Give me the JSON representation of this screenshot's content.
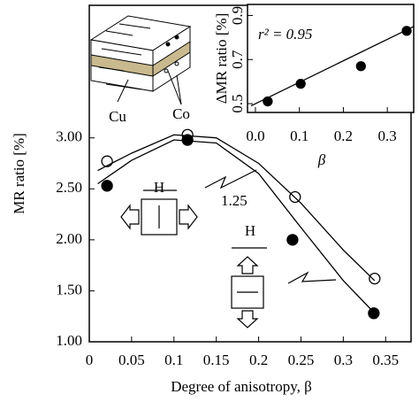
{
  "chart_data": [
    {
      "type": "scatter",
      "xlabel": "Degree of anisotropy, β",
      "ylabel": "MR ratio [%]",
      "xlim": [
        0,
        0.38
      ],
      "ylim": [
        1.0,
        4.3
      ],
      "xticks": [
        0,
        0.05,
        0.1,
        0.15,
        0.2,
        0.25,
        0.3,
        0.35
      ],
      "yticks": [
        {
          "value": 1,
          "label": "1.00"
        },
        {
          "value": 1.5,
          "label": "1.50"
        },
        {
          "value": 2,
          "label": "2.00"
        },
        {
          "value": 2.5,
          "label": "2.50"
        },
        {
          "value": 3,
          "label": "3.00"
        }
      ],
      "series": [
        {
          "marker": "open",
          "color": "#000000",
          "x": [
            0.021,
            0.116,
            0.243,
            0.337
          ],
          "values": [
            2.77,
            3.03,
            2.42,
            1.62
          ]
        },
        {
          "marker": "filled",
          "color": "#000000",
          "x": [
            0.021,
            0.116,
            0.24,
            0.336
          ],
          "values": [
            2.53,
            2.98,
            2.0,
            1.28
          ]
        },
        {
          "marker": "none",
          "color": "#000000",
          "x": [
            0.01,
            0.05,
            0.1,
            0.15,
            0.2,
            0.25,
            0.3,
            0.337
          ],
          "values": [
            2.68,
            2.85,
            3.03,
            3.0,
            2.75,
            2.36,
            1.9,
            1.6
          ]
        },
        {
          "marker": "none",
          "color": "#000000",
          "x": [
            0.01,
            0.05,
            0.1,
            0.15,
            0.2,
            0.25,
            0.3,
            0.337
          ],
          "values": [
            2.55,
            2.78,
            2.98,
            2.95,
            2.65,
            2.12,
            1.6,
            1.28
          ]
        }
      ],
      "annotations": [
        "H",
        "1.25",
        "H",
        "Cu",
        "Co"
      ]
    },
    {
      "type": "scatter",
      "xlabel": "β",
      "ylabel": "ΔMR ratio [%]",
      "text": "r² = 0.95",
      "xlim": [
        -0.018,
        0.36
      ],
      "ylim": [
        0.46,
        0.95
      ],
      "xticks": [
        {
          "value": 0,
          "label": "0.0"
        },
        0.1,
        0.2,
        0.3
      ],
      "yticks": [
        0.5,
        0.7,
        0.9
      ],
      "series": [
        {
          "marker": "filled",
          "color": "#000000",
          "x": [
            0.028,
            0.103,
            0.24,
            0.344
          ],
          "values": [
            0.51,
            0.59,
            0.67,
            0.83
          ]
        },
        {
          "marker": "none",
          "color": "#000000",
          "x": [
            -0.01,
            0.36
          ],
          "values": [
            0.49,
            0.85
          ]
        }
      ]
    }
  ]
}
